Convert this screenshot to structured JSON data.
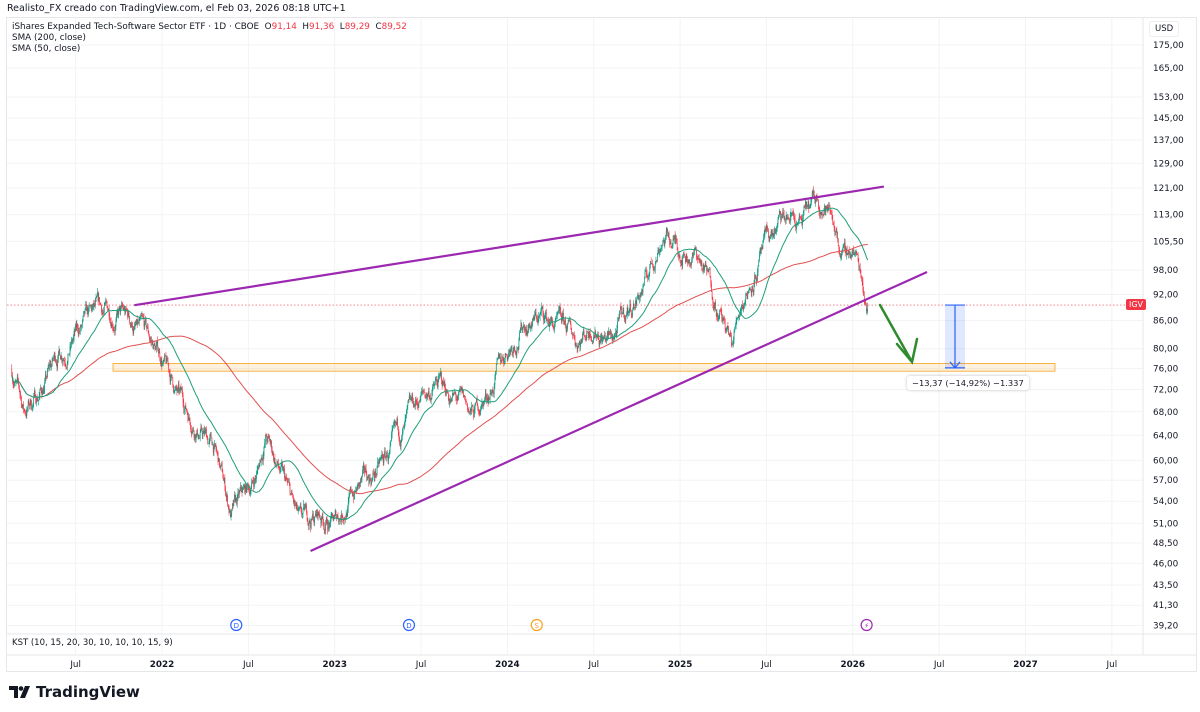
{
  "header": {
    "credit": "Realisto_FX creado con TradingView.com, el Feb 03, 2026 08:18 UTC+1",
    "symbol_title": "iShares Expanded Tech-Software Sector ETF · 1D · CBOE",
    "ohlc": {
      "o_label": "O",
      "o": "91,14",
      "h_label": "H",
      "h": "91,36",
      "l_label": "L",
      "l": "89,29",
      "c_label": "C",
      "c": "89,52"
    },
    "indicators": [
      "SMA (200, close)",
      "SMA (50, close)"
    ]
  },
  "price_axis": {
    "currency": "USD",
    "ticks": [
      "175,00",
      "165,00",
      "153,00",
      "145,00",
      "137,00",
      "129,00",
      "121,00",
      "113,00",
      "105,50",
      "98,00",
      "92,00",
      "86,00",
      "80,00",
      "76,00",
      "72,00",
      "68,00",
      "64,00",
      "60,00",
      "57,00",
      "54,00",
      "51,00",
      "48,50",
      "46,00",
      "43,50",
      "41,30",
      "39,20"
    ],
    "symbol_badge": "IGV",
    "last_price": 89.52
  },
  "time_axis": {
    "ticks": [
      {
        "label": "Jul",
        "t": 2021.5
      },
      {
        "label": "2022",
        "t": 2022
      },
      {
        "label": "Jul",
        "t": 2022.5
      },
      {
        "label": "2023",
        "t": 2023
      },
      {
        "label": "Jul",
        "t": 2023.5
      },
      {
        "label": "2024",
        "t": 2024
      },
      {
        "label": "Jul",
        "t": 2024.5
      },
      {
        "label": "2025",
        "t": 2025
      },
      {
        "label": "Jul",
        "t": 2025.5
      },
      {
        "label": "2026",
        "t": 2026
      },
      {
        "label": "Jul",
        "t": 2026.5
      },
      {
        "label": "2027",
        "t": 2027
      },
      {
        "label": "Jul",
        "t": 2027.5
      }
    ]
  },
  "events": [
    {
      "type": "dividend",
      "label": "D",
      "t": 2022.43,
      "color": "#2962ff"
    },
    {
      "type": "dividend",
      "label": "D",
      "t": 2023.43,
      "color": "#2962ff"
    },
    {
      "type": "split",
      "label": "S",
      "t": 2024.17,
      "color": "#f7a21b"
    },
    {
      "type": "earnings-flash",
      "label": "⚡",
      "t": 2026.08,
      "color": "#9c27b0"
    }
  ],
  "kst_label": "KST (10, 15, 20, 30, 10, 10, 10, 15, 9)",
  "measure": {
    "text": "−13,37 (−14,92%) −1.337",
    "from": 89.52,
    "to": 76.15
  },
  "brand": "TradingView",
  "colors": {
    "up": "#089981",
    "down": "#f23645",
    "sma200": "#e05050",
    "sma50": "#1e9e7a",
    "trend": "#9c27b0",
    "zone": "#f7a21b",
    "arrow": "#2e8b2e",
    "measure": "#2962ff"
  },
  "chart_data": {
    "type": "candlestick",
    "title": "iShares Expanded Tech-Software Sector ETF · 1D · CBOE",
    "y_scale": "log",
    "ylim": [
      39.2,
      175
    ],
    "xlim": [
      2021.1,
      2027.7
    ],
    "anchors": [
      [
        2021.13,
        76
      ],
      [
        2021.2,
        68
      ],
      [
        2021.3,
        72
      ],
      [
        2021.4,
        79
      ],
      [
        2021.5,
        83
      ],
      [
        2021.6,
        86
      ],
      [
        2021.75,
        88
      ],
      [
        2021.85,
        84
      ],
      [
        2021.95,
        80
      ],
      [
        2022.0,
        78
      ],
      [
        2022.1,
        70
      ],
      [
        2022.2,
        66
      ],
      [
        2022.3,
        62
      ],
      [
        2022.4,
        52
      ],
      [
        2022.5,
        55
      ],
      [
        2022.55,
        58
      ],
      [
        2022.6,
        64
      ],
      [
        2022.7,
        57
      ],
      [
        2022.8,
        50
      ],
      [
        2022.9,
        52
      ],
      [
        2023.0,
        51
      ],
      [
        2023.1,
        55
      ],
      [
        2023.2,
        57
      ],
      [
        2023.3,
        60
      ],
      [
        2023.4,
        64
      ],
      [
        2023.5,
        70
      ],
      [
        2023.6,
        73
      ],
      [
        2023.7,
        70
      ],
      [
        2023.8,
        67
      ],
      [
        2023.9,
        72
      ],
      [
        2024.0,
        80
      ],
      [
        2024.1,
        86
      ],
      [
        2024.2,
        87
      ],
      [
        2024.3,
        84
      ],
      [
        2024.4,
        82
      ],
      [
        2024.5,
        86
      ],
      [
        2024.6,
        82
      ],
      [
        2024.7,
        88
      ],
      [
        2024.8,
        95
      ],
      [
        2024.9,
        108
      ],
      [
        2025.0,
        104
      ],
      [
        2025.1,
        102
      ],
      [
        2025.2,
        92
      ],
      [
        2025.3,
        80
      ],
      [
        2025.35,
        90
      ],
      [
        2025.45,
        100
      ],
      [
        2025.55,
        108
      ],
      [
        2025.65,
        112
      ],
      [
        2025.7,
        110
      ],
      [
        2025.8,
        117
      ],
      [
        2025.85,
        115
      ],
      [
        2025.9,
        110
      ],
      [
        2025.95,
        101
      ],
      [
        2026.0,
        104
      ],
      [
        2026.05,
        97
      ],
      [
        2026.09,
        89.52
      ]
    ],
    "trendlines": [
      {
        "name": "upper",
        "from": [
          2021.84,
          89.5
        ],
        "to": [
          2026.18,
          121.5
        ]
      },
      {
        "name": "lower",
        "from": [
          2022.86,
          47.5
        ],
        "to": [
          2026.43,
          97.5
        ]
      }
    ],
    "support_zone": [
      75.5,
      77.0
    ]
  }
}
